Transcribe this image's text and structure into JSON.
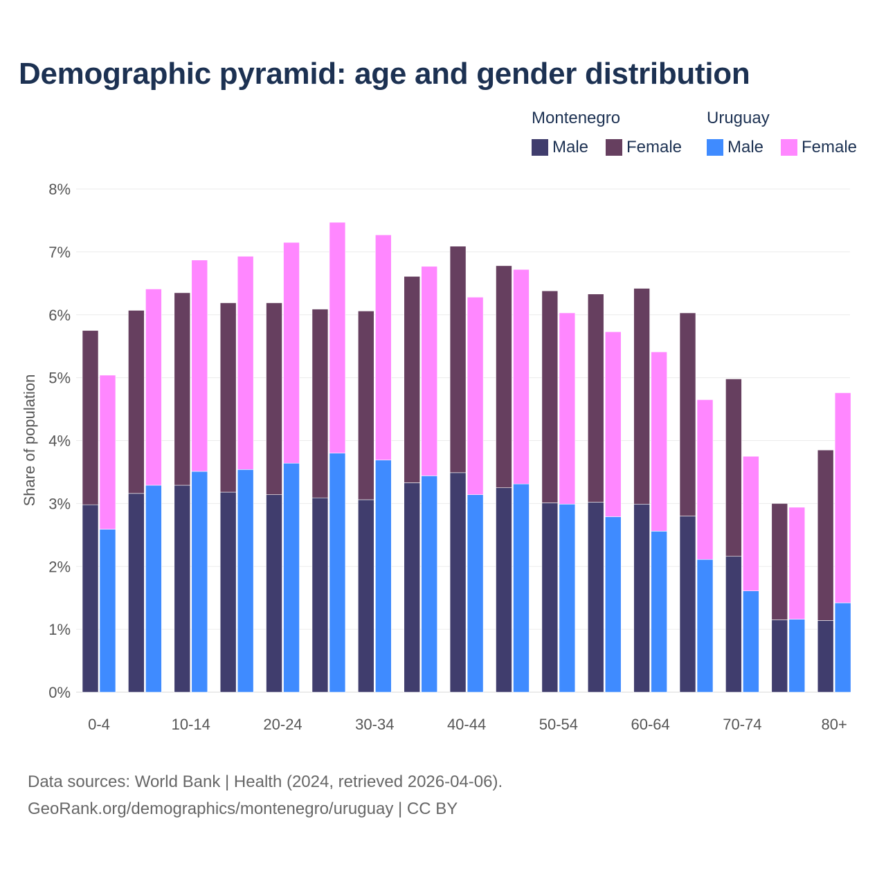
{
  "title": "Demographic pyramid: age and gender distribution",
  "legend": {
    "groups": [
      {
        "name": "Montenegro",
        "items": [
          {
            "label": "Male",
            "color": "#403d6d"
          },
          {
            "label": "Female",
            "color": "#663f5f"
          }
        ]
      },
      {
        "name": "Uruguay",
        "items": [
          {
            "label": "Male",
            "color": "#3f8bff"
          },
          {
            "label": "Female",
            "color": "#ff87ff"
          }
        ]
      }
    ]
  },
  "footer": {
    "source": "Data sources: World Bank | Health (2024, retrieved 2026-04-06).",
    "link": "GeoRank.org/demographics/montenegro/uruguay | CC BY"
  },
  "chart_data": {
    "type": "bar",
    "stacked": true,
    "grouped": true,
    "ylabel": "Share of population",
    "xlabel": "",
    "ylim": [
      0,
      8
    ],
    "yticks": [
      "0%",
      "1%",
      "2%",
      "3%",
      "4%",
      "5%",
      "6%",
      "7%",
      "8%"
    ],
    "x_tick_labels": [
      "0-4",
      "10-14",
      "20-24",
      "30-34",
      "40-44",
      "50-54",
      "60-64",
      "70-74",
      "80+"
    ],
    "categories": [
      "0-4",
      "5-9",
      "10-14",
      "15-19",
      "20-24",
      "25-29",
      "30-34",
      "35-39",
      "40-44",
      "45-49",
      "50-54",
      "55-59",
      "60-64",
      "65-69",
      "70-74",
      "75-79",
      "80+"
    ],
    "series": [
      {
        "name": "Male",
        "group": "Montenegro",
        "color": "#403d6d",
        "values": [
          2.98,
          3.16,
          3.29,
          3.18,
          3.14,
          3.09,
          3.06,
          3.33,
          3.49,
          3.25,
          3.01,
          3.02,
          2.99,
          2.8,
          2.16,
          1.15,
          1.14
        ]
      },
      {
        "name": "Female",
        "group": "Montenegro",
        "color": "#663f5f",
        "values": [
          2.77,
          2.91,
          3.06,
          3.01,
          3.05,
          3.0,
          3.0,
          3.28,
          3.6,
          3.53,
          3.37,
          3.31,
          3.43,
          3.23,
          2.82,
          1.85,
          2.71
        ]
      },
      {
        "name": "Male",
        "group": "Uruguay",
        "color": "#3f8bff",
        "values": [
          2.59,
          3.29,
          3.51,
          3.54,
          3.64,
          3.8,
          3.69,
          3.44,
          3.14,
          3.31,
          2.99,
          2.79,
          2.56,
          2.11,
          1.61,
          1.16,
          1.42
        ]
      },
      {
        "name": "Female",
        "group": "Uruguay",
        "color": "#ff87ff",
        "values": [
          2.45,
          3.12,
          3.36,
          3.39,
          3.51,
          3.67,
          3.58,
          3.33,
          3.14,
          3.41,
          3.04,
          2.94,
          2.85,
          2.54,
          2.14,
          1.78,
          3.34
        ]
      }
    ]
  }
}
